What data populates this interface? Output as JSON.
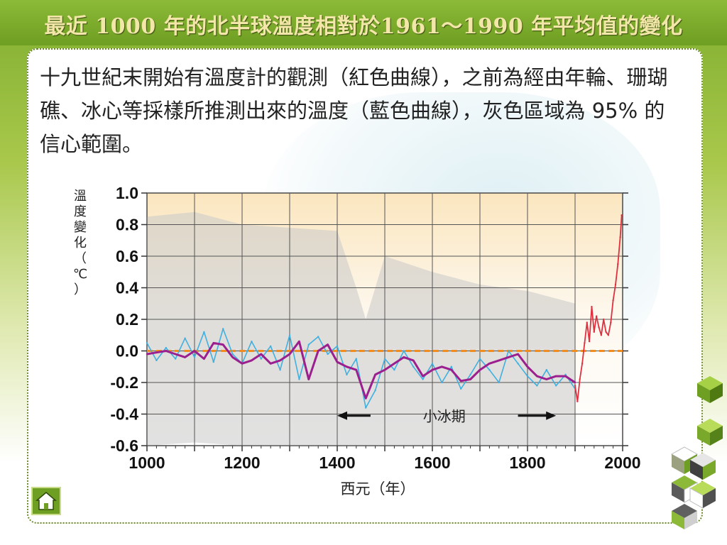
{
  "slide": {
    "title": "最近 1000 年的北半球溫度相對於1961～1990 年平均值的變化",
    "description": "十九世紀末開始有溫度計的觀測（紅色曲線），之前為經由年輪、珊瑚礁、冰心等採樣所推測出來的溫度（藍色曲線），灰色區域為 95% 的信心範圍。",
    "annotation": "小冰期"
  },
  "icons": {
    "home": "home-icon",
    "decor": "cube-stack-icon"
  },
  "colors": {
    "proxy_series": "#3fb0e0",
    "instrumental_series": "#e03040",
    "smoothed_series": "#9b1f8f",
    "zero_line": "#f08c20",
    "confidence_band": "#c8c8c8",
    "title_text": "#f2e6a8"
  },
  "chart_data": {
    "type": "line",
    "title": "",
    "xlabel": "西元（年）",
    "ylabel": "溫度變化（℃）",
    "xlim": [
      1000,
      2000
    ],
    "ylim": [
      -0.6,
      1.0
    ],
    "x_ticks": [
      "1000",
      "1200",
      "1400",
      "1600",
      "1800",
      "2000"
    ],
    "y_ticks": [
      "1.0",
      "0.8",
      "0.6",
      "0.4",
      "0.2",
      "0.0",
      "-0.2",
      "-0.4",
      "-0.6"
    ],
    "grid": true,
    "reference_line": 0.0,
    "series": [
      {
        "x": [
          1000,
          1020,
          1040,
          1060,
          1080,
          1100,
          1120,
          1140,
          1160,
          1180,
          1200,
          1220,
          1240,
          1260,
          1280,
          1300,
          1320,
          1340,
          1360,
          1380,
          1400,
          1420,
          1440,
          1460,
          1480,
          1500,
          1520,
          1540,
          1560,
          1580,
          1600,
          1620,
          1640,
          1660,
          1680,
          1700,
          1720,
          1740,
          1760,
          1780,
          1800,
          1820,
          1840,
          1860,
          1880,
          1900
        ],
        "y": [
          0.05,
          -0.06,
          0.02,
          -0.05,
          0.08,
          -0.04,
          0.12,
          -0.07,
          0.14,
          -0.02,
          -0.08,
          0.06,
          -0.05,
          0.03,
          -0.12,
          0.1,
          -0.18,
          0.04,
          0.09,
          -0.02,
          0.03,
          -0.15,
          -0.05,
          -0.36,
          -0.25,
          -0.05,
          -0.12,
          0.0,
          -0.1,
          -0.18,
          -0.08,
          -0.2,
          -0.1,
          -0.24,
          -0.15,
          -0.05,
          -0.12,
          -0.2,
          0.0,
          -0.08,
          -0.16,
          -0.22,
          -0.12,
          -0.22,
          -0.15,
          -0.24
        ]
      },
      {
        "x": [
          1000,
          1020,
          1040,
          1060,
          1080,
          1100,
          1120,
          1140,
          1160,
          1180,
          1200,
          1220,
          1240,
          1260,
          1280,
          1300,
          1320,
          1340,
          1360,
          1380,
          1400,
          1420,
          1440,
          1460,
          1480,
          1500,
          1520,
          1540,
          1560,
          1580,
          1600,
          1620,
          1640,
          1660,
          1680,
          1700,
          1720,
          1740,
          1760,
          1780,
          1800,
          1820,
          1840,
          1860,
          1880,
          1900
        ],
        "y": [
          -0.02,
          -0.01,
          0.0,
          -0.02,
          -0.04,
          0.0,
          -0.05,
          0.05,
          0.04,
          -0.04,
          -0.08,
          -0.06,
          -0.02,
          -0.08,
          -0.06,
          -0.02,
          0.06,
          -0.18,
          0.0,
          0.04,
          -0.07,
          -0.1,
          -0.12,
          -0.3,
          -0.15,
          -0.12,
          -0.08,
          -0.04,
          -0.06,
          -0.16,
          -0.12,
          -0.1,
          -0.12,
          -0.19,
          -0.18,
          -0.12,
          -0.08,
          -0.06,
          -0.04,
          -0.02,
          -0.1,
          -0.16,
          -0.18,
          -0.16,
          -0.16,
          -0.2
        ]
      },
      {
        "x": [
          1900,
          1905,
          1910,
          1915,
          1920,
          1925,
          1930,
          1935,
          1940,
          1945,
          1950,
          1955,
          1960,
          1965,
          1970,
          1975,
          1980,
          1985,
          1990,
          1995,
          1998
        ],
        "y": [
          -0.22,
          -0.32,
          -0.18,
          -0.08,
          0.05,
          0.18,
          0.06,
          0.28,
          0.12,
          0.22,
          0.15,
          0.1,
          0.2,
          0.12,
          0.1,
          0.18,
          0.32,
          0.42,
          0.55,
          0.72,
          0.86
        ]
      }
    ],
    "confidence_band": {
      "x": [
        1000,
        1100,
        1200,
        1300,
        1400,
        1440,
        1460,
        1500,
        1600,
        1700,
        1800,
        1900
      ],
      "upper": [
        0.85,
        0.88,
        0.8,
        0.78,
        0.76,
        0.4,
        0.2,
        0.6,
        0.5,
        0.42,
        0.38,
        0.3
      ],
      "lower": [
        -0.6,
        -0.58,
        -0.6,
        -0.6,
        -0.6,
        -0.6,
        -0.6,
        -0.6,
        -0.6,
        -0.6,
        -0.6,
        -0.6
      ]
    },
    "legend": false
  }
}
